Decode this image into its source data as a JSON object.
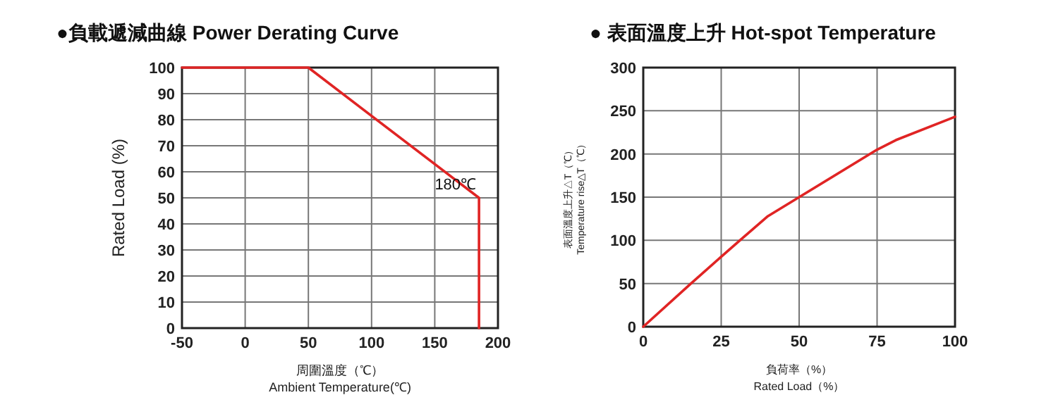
{
  "chart_data": [
    {
      "type": "line",
      "title": "●負載遞減曲線  **Power Derating Curve**",
      "xlabel": "周圍溫度（℃）\nAmbient Temperature(℃)",
      "ylabel": "Rated Load (%)",
      "x": [
        -50,
        50,
        185,
        185
      ],
      "series": [
        {
          "color": "#e02424",
          "values": [
            100,
            100,
            50,
            0
          ]
        }
      ],
      "xlim": [
        -50,
        200
      ],
      "xticks": [
        -50,
        0,
        50,
        100,
        150,
        200
      ],
      "ylim": [
        0,
        100
      ],
      "yticks": [
        0,
        10,
        20,
        30,
        40,
        50,
        60,
        70,
        80,
        90,
        100
      ],
      "grid": true,
      "annotations": [
        {
          "text": "180℃",
          "x": 185,
          "y": 50
        }
      ]
    },
    {
      "type": "line",
      "title": "● 表面溫度上升 **Hot-spot Temperature**",
      "xlabel": "負荷率（%）\nRated Load（%）",
      "ylabel": "表面溫度上升△T（℃）\nTemperature rise△T（℃）",
      "x": [
        0,
        15,
        25,
        31,
        40,
        50,
        75,
        81,
        100
      ],
      "series": [
        {
          "color": "#e02424",
          "values": [
            0,
            49,
            81,
            100,
            128,
            150,
            205,
            216,
            243
          ]
        }
      ],
      "xlim": [
        0,
        100
      ],
      "xticks": [
        0,
        25,
        50,
        75,
        100
      ],
      "ylim": [
        0,
        300
      ],
      "yticks": [
        0,
        50,
        100,
        150,
        200,
        250,
        300
      ],
      "grid": true
    }
  ]
}
